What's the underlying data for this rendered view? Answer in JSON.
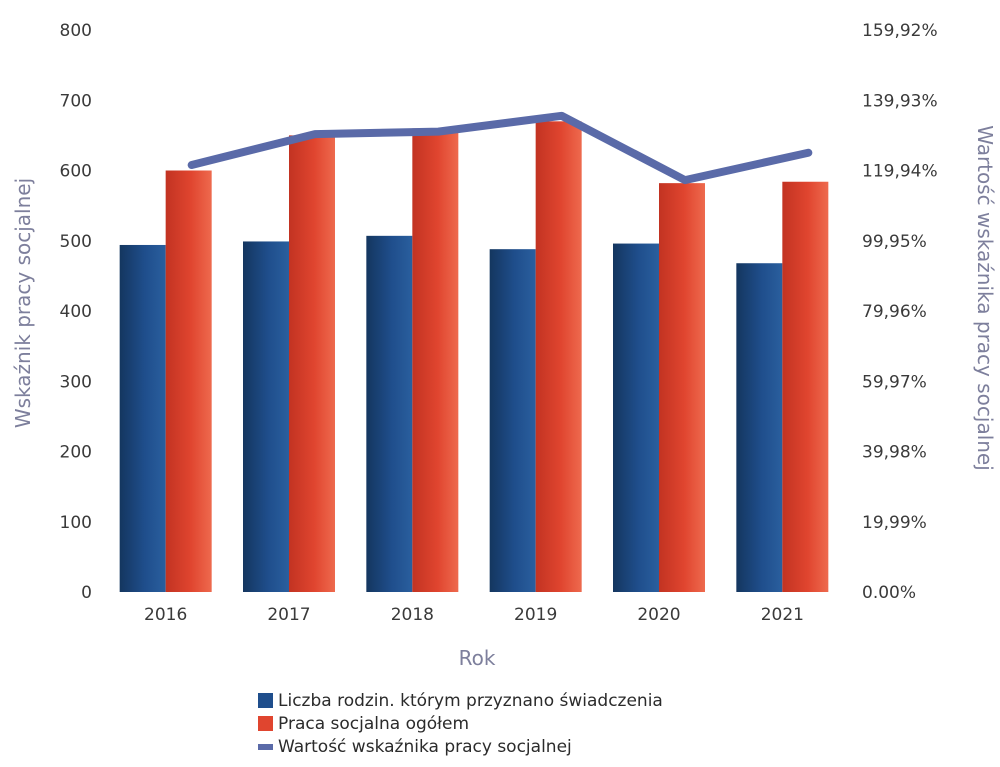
{
  "chart_data": {
    "type": "bar",
    "categories": [
      "2016",
      "2017",
      "2018",
      "2019",
      "2020",
      "2021"
    ],
    "xlabel": "Rok",
    "ylabel_left": "Wskaźnik pracy socjalnej",
    "ylabel_right": "Wartość wskaźnika pracy socjalnej",
    "ylim_left": [
      0,
      800
    ],
    "ylim_right": [
      0,
      159.92
    ],
    "yticks_left": [
      "0",
      "100",
      "200",
      "300",
      "400",
      "500",
      "600",
      "700",
      "800"
    ],
    "yticks_right": [
      "0.00%",
      "19,99%",
      "39,98%",
      "59,97%",
      "79,96%",
      "99,95%",
      "119,94%",
      "139,93%",
      "159,92%"
    ],
    "series": [
      {
        "name": "Liczba rodzin. którym przyznano świadczenia",
        "kind": "bar",
        "axis": "left",
        "color": "#1f4e8c",
        "values": [
          494,
          499,
          507,
          488,
          496,
          468
        ]
      },
      {
        "name": "Praca socjalna ogółem",
        "kind": "bar",
        "axis": "left",
        "color": "#e0452f",
        "values": [
          600,
          650,
          660,
          670,
          582,
          584
        ]
      },
      {
        "name": "Wartość wskaźnika pracy socjalnej",
        "kind": "line",
        "axis": "right",
        "color": "#5a6aa8",
        "values": [
          121.5,
          130.3,
          131.0,
          135.5,
          117.2,
          125.0
        ]
      }
    ],
    "legend_position": "bottom",
    "grid": false
  }
}
